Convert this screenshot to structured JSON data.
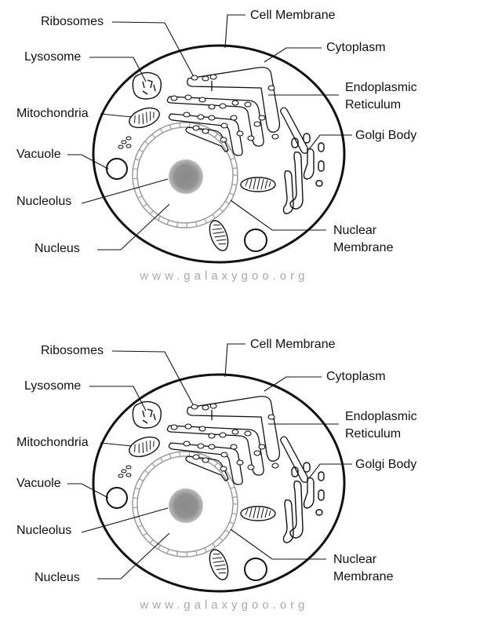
{
  "diagrams": [
    {
      "labels": {
        "ribosomes": "Ribosomes",
        "cell_membrane": "Cell Membrane",
        "lysosome": "Lysosome",
        "cytoplasm": "Cytoplasm",
        "endoplasmic": "Endoplasmic",
        "reticulum": "Reticulum",
        "mitochondria": "Mitochondria",
        "golgi_body": "Golgi Body",
        "vacuole": "Vacuole",
        "nucleolus": "Nucleolus",
        "nuclear": "Nuclear",
        "membrane": "Membrane",
        "nucleus": "Nucleus"
      },
      "watermark": "www.galaxygoo.org"
    },
    {
      "labels": {
        "ribosomes": "Ribosomes",
        "cell_membrane": "Cell Membrane",
        "lysosome": "Lysosome",
        "cytoplasm": "Cytoplasm",
        "endoplasmic": "Endoplasmic",
        "reticulum": "Reticulum",
        "mitochondria": "Mitochondria",
        "golgi_body": "Golgi Body",
        "vacuole": "Vacuole",
        "nucleolus": "Nucleolus",
        "nuclear": "Nuclear",
        "membrane": "Membrane",
        "nucleus": "Nucleus"
      },
      "watermark": "www.galaxygoo.org"
    }
  ],
  "colors": {
    "stroke": "#111111",
    "nucleolus": "#8c8c8c",
    "nuclear_membrane": "#999999",
    "watermark": "#a8a8a8"
  }
}
